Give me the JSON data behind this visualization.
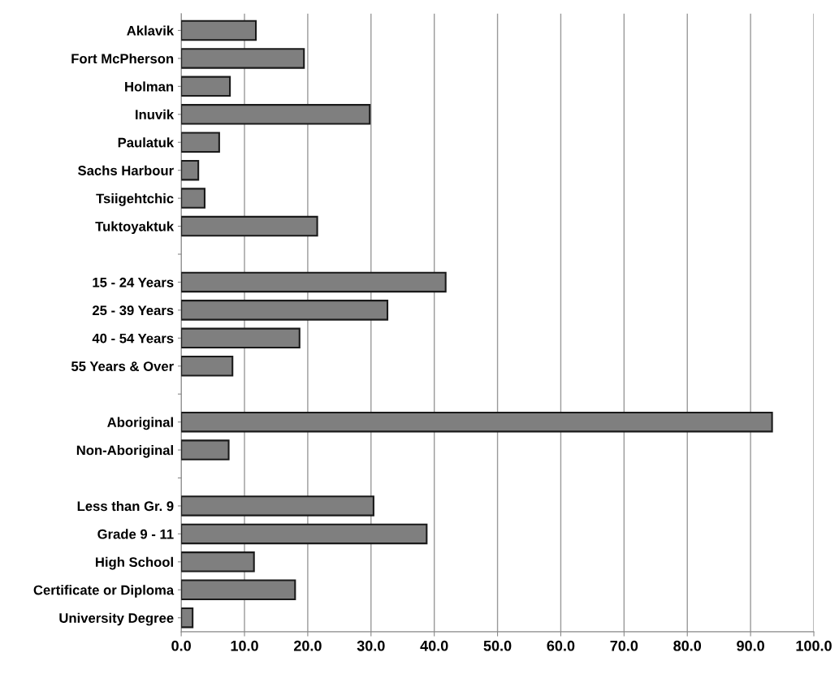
{
  "chart_data": {
    "type": "bar",
    "orientation": "horizontal",
    "categories": [
      "Aklavik",
      "Fort McPherson",
      "Holman",
      "Inuvik",
      "Paulatuk",
      "Sachs Harbour",
      "Tsiigehtchic",
      "Tuktoyaktuk",
      null,
      "15 - 24 Years",
      "25 - 39 Years",
      "40 - 54 Years",
      "55 Years & Over",
      null,
      "Aboriginal",
      "Non-Aboriginal",
      null,
      "Less than Gr. 9",
      "Grade 9 - 11",
      "High School",
      "Certificate or Diploma",
      "University Degree"
    ],
    "values": [
      11.8,
      19.4,
      7.7,
      29.8,
      6.0,
      2.7,
      3.7,
      21.5,
      null,
      41.8,
      32.6,
      18.7,
      8.1,
      null,
      93.4,
      7.5,
      null,
      30.4,
      38.8,
      11.5,
      18.0,
      1.8
    ],
    "color": "#7f7f7f",
    "xlim": [
      0,
      100
    ],
    "xticks": [
      {
        "value": 0,
        "label": "0.0"
      },
      {
        "value": 10,
        "label": "10.0"
      },
      {
        "value": 20,
        "label": "20.0"
      },
      {
        "value": 30,
        "label": "30.0"
      },
      {
        "value": 40,
        "label": "40.0"
      },
      {
        "value": 50,
        "label": "50.0"
      },
      {
        "value": 60,
        "label": "60.0"
      },
      {
        "value": 70,
        "label": "70.0"
      },
      {
        "value": 80,
        "label": "80.0"
      },
      {
        "value": 90,
        "label": "90.0"
      },
      {
        "value": 100,
        "label": "100.0"
      }
    ],
    "grid": "x"
  }
}
